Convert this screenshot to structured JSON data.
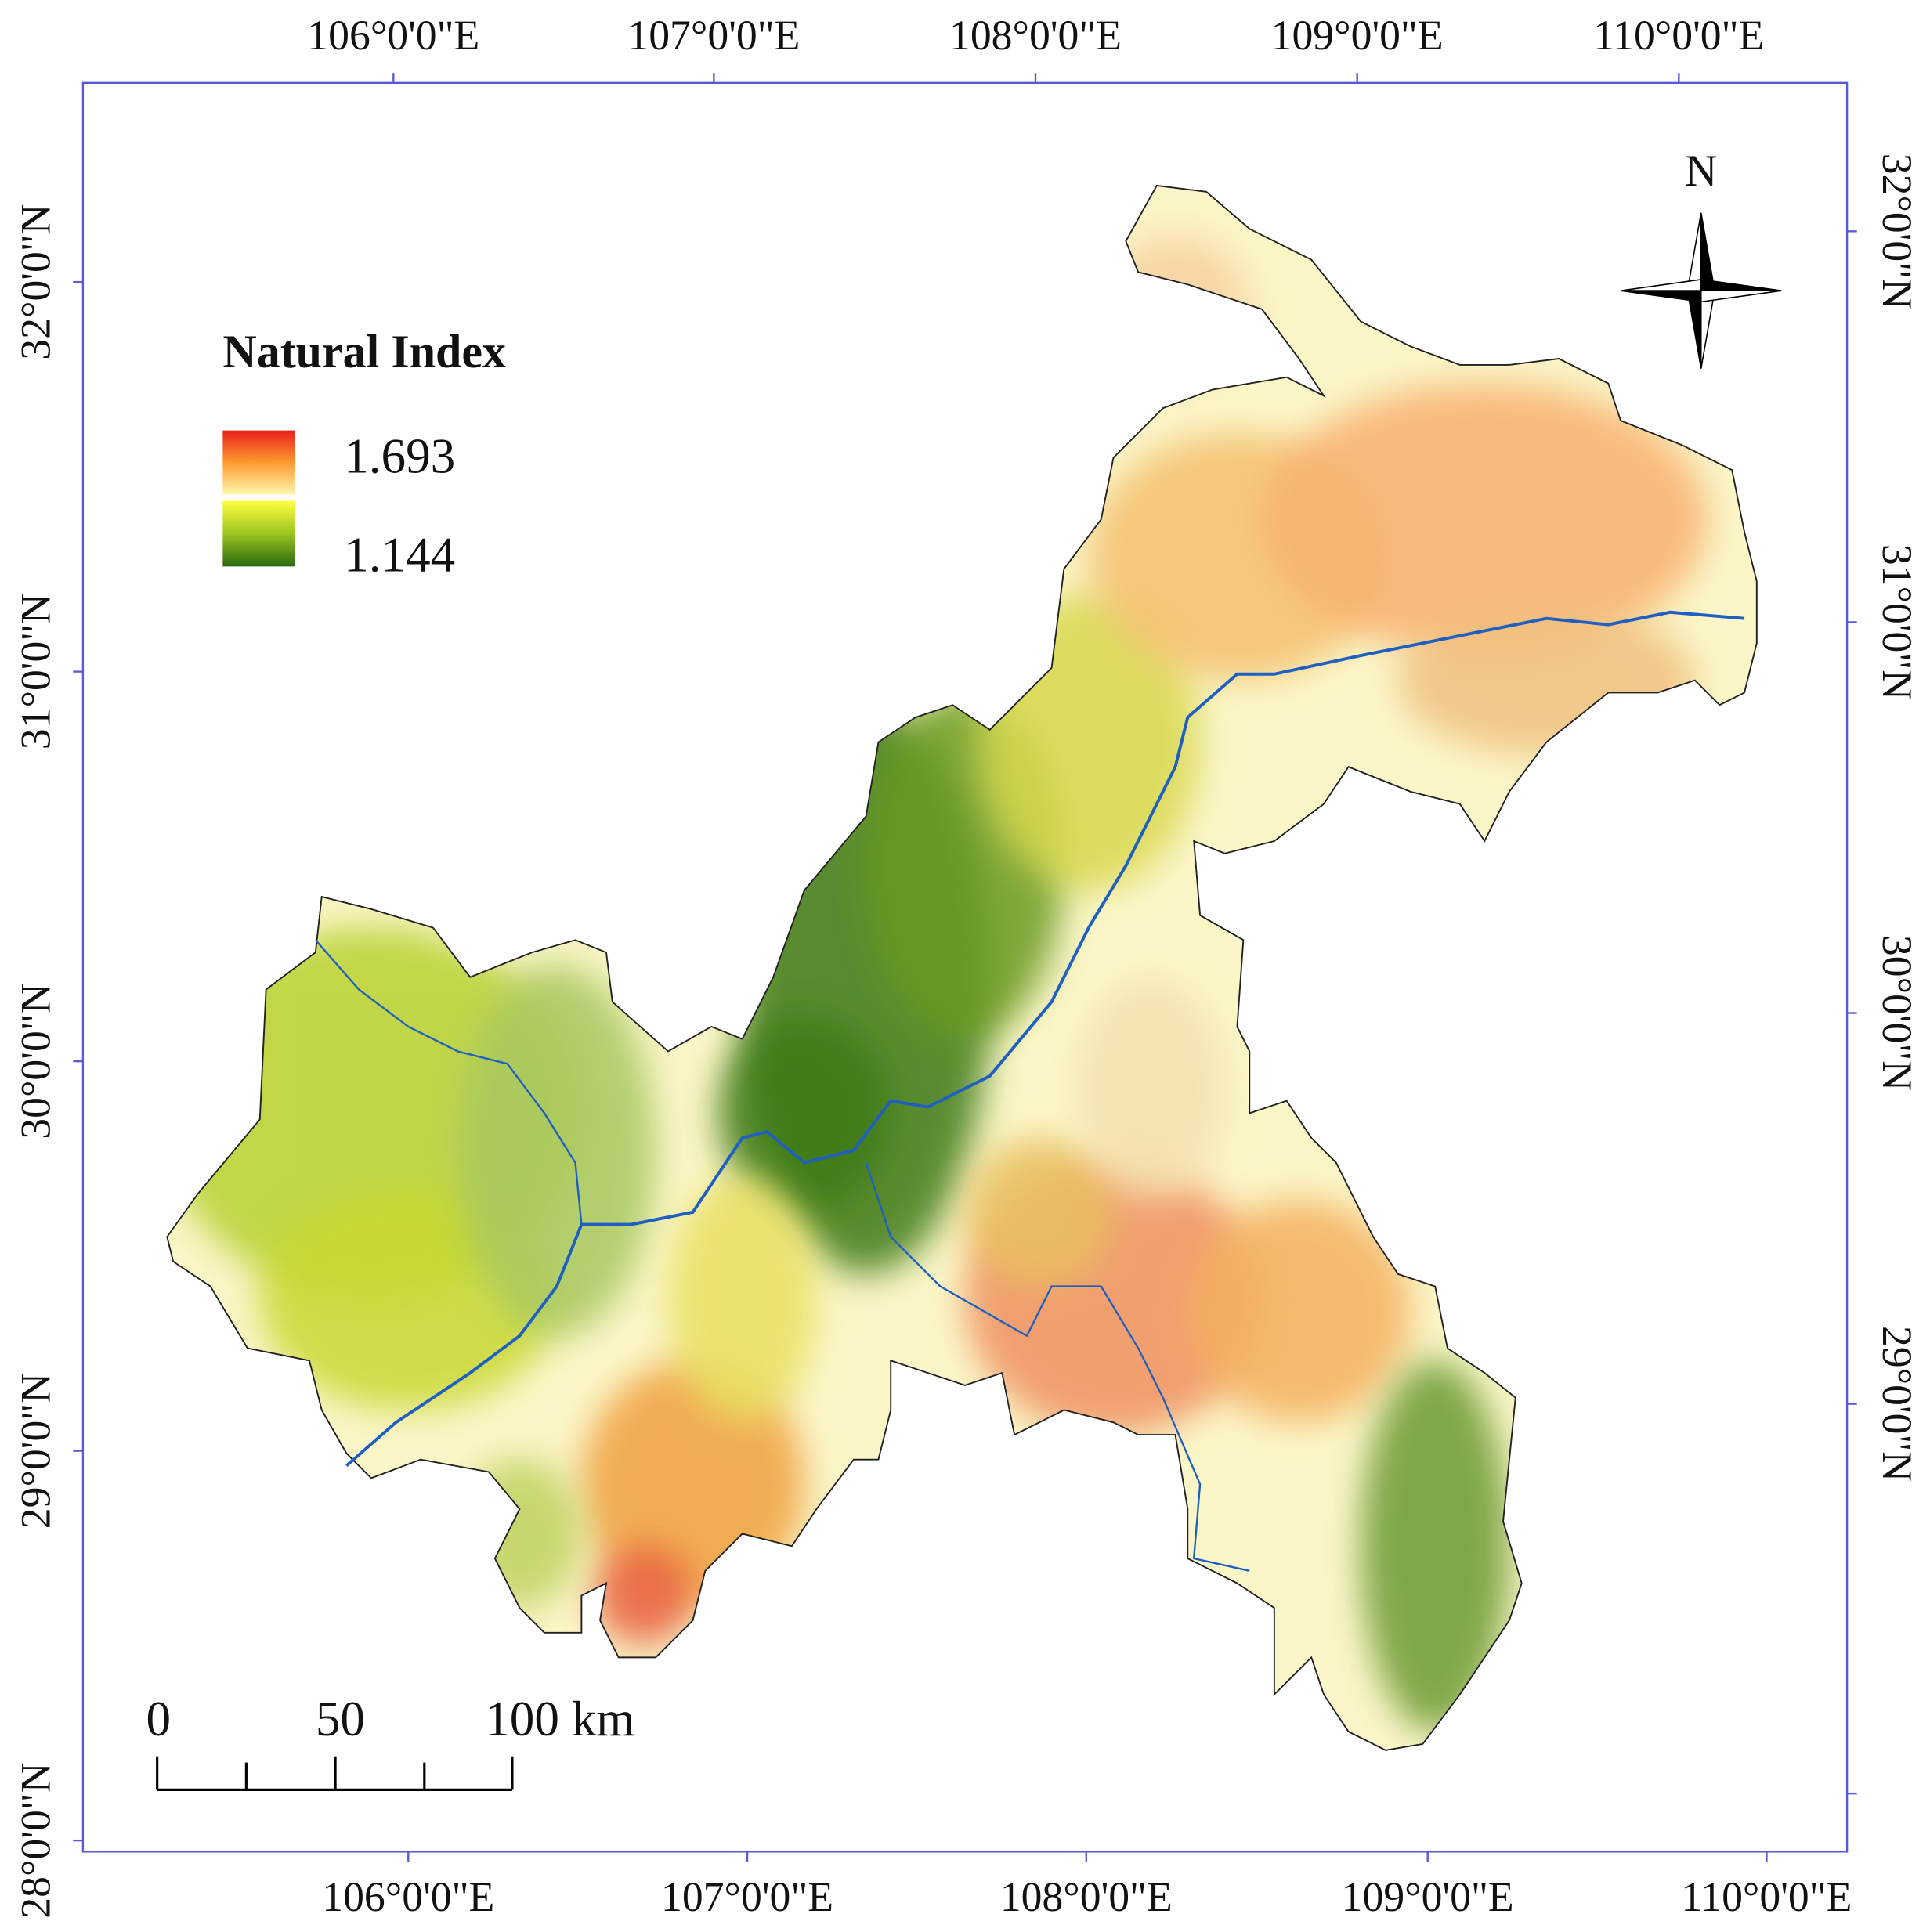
{
  "map": {
    "legend": {
      "title": "Natural Index",
      "high": 1.693,
      "low": 1.144
    },
    "north": "N",
    "scale_bar": {
      "labels": [
        "0",
        "50",
        "100 km"
      ]
    },
    "graticule": {
      "top": [
        "106°0'0\"E",
        "107°0'0\"E",
        "108°0'0\"E",
        "109°0'0\"E",
        "110°0'0\"E"
      ],
      "bottom": [
        "106°0'0\"E",
        "107°0'0\"E",
        "108°0'0\"E",
        "109°0'0\"E",
        "110°0'0\"E"
      ],
      "left": [
        "32°0'0\"N",
        "31°0'0\"N",
        "30°0'0\"N",
        "29°0'0\"N",
        "28°0'0\"N"
      ],
      "right": [
        "32°0'0\"N",
        "31°0'0\"N",
        "30°0'0\"N",
        "29°0'0\"N"
      ]
    }
  }
}
